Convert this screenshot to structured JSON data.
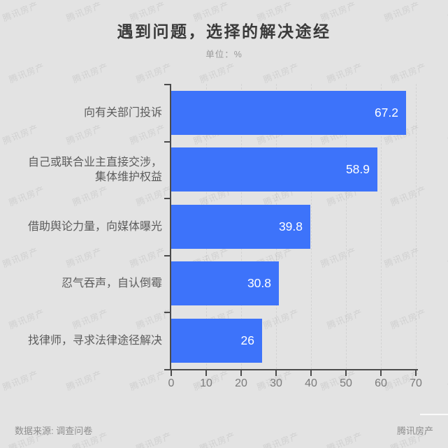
{
  "page": {
    "title": "遇到问题，选择的解决途经",
    "subtitle": "单位：%"
  },
  "watermark": {
    "text": "腾讯房产"
  },
  "footer": {
    "source": "数据来源: 调查问卷",
    "brand": "腾讯房产"
  },
  "chart_data": {
    "type": "bar",
    "orientation": "horizontal",
    "title": "遇到问题，选择的解决途经",
    "unit": "%",
    "unit_label": "单位：%",
    "categories": [
      "向有关部门投诉",
      "自己或联合业主直接交涉，\n集体维护权益",
      "借助舆论力量，向媒体曝光",
      "忍气吞声，自认倒霉",
      "找律师，寻求法律途径解决"
    ],
    "values": [
      67.2,
      58.9,
      39.8,
      30.8,
      26
    ],
    "value_labels": [
      "67.2",
      "58.9",
      "39.8",
      "30.8",
      "26"
    ],
    "xlim": [
      0,
      70
    ],
    "x_ticks": [
      "0",
      "10",
      "20",
      "30",
      "40",
      "50",
      "60",
      "70"
    ],
    "bar_color": "#3d73fa",
    "background_color": "#e3e3e3",
    "grid": "vertical-dashed",
    "legend": "none"
  }
}
